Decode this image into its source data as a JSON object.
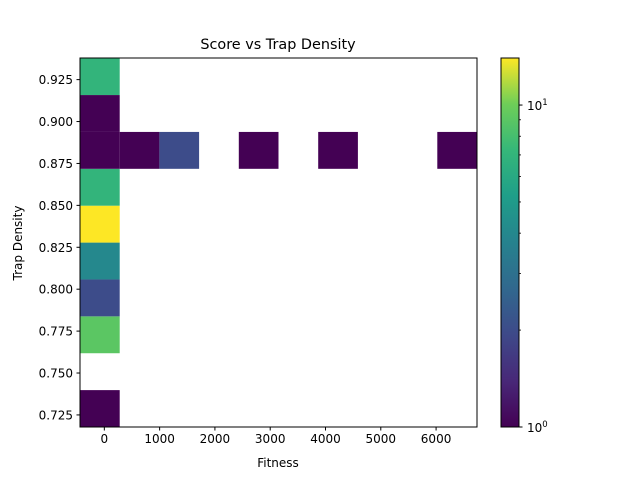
{
  "chart_data": {
    "type": "heatmap",
    "title": "Score vs Trap Density",
    "xlabel": "Fitness",
    "ylabel": "Trap Density",
    "xlim": [
      -440,
      6740
    ],
    "ylim": [
      0.7178,
      0.9379
    ],
    "x_ticks": [
      0,
      1000,
      2000,
      3000,
      4000,
      5000,
      6000
    ],
    "x_tick_labels": [
      "0",
      "1000",
      "2000",
      "3000",
      "4000",
      "5000",
      "6000"
    ],
    "y_ticks": [
      0.725,
      0.75,
      0.775,
      0.8,
      0.825,
      0.85,
      0.875,
      0.9,
      0.925
    ],
    "y_tick_labels": [
      "0.725",
      "0.750",
      "0.775",
      "0.800",
      "0.825",
      "0.850",
      "0.875",
      "0.900",
      "0.925"
    ],
    "color_scale": "log",
    "colormap": "viridis",
    "color_range": [
      1,
      14
    ],
    "colorbar_tick_labels": [
      "10^0",
      "10^1"
    ],
    "grid": false,
    "cells": [
      {
        "x0": -440,
        "x1": 278,
        "y0": 0.7178,
        "y1": 0.7398,
        "count": 1
      },
      {
        "x0": -440,
        "x1": 278,
        "y0": 0.7618,
        "y1": 0.7838,
        "count": 9
      },
      {
        "x0": -440,
        "x1": 278,
        "y0": 0.7838,
        "y1": 0.8058,
        "count": 2
      },
      {
        "x0": -440,
        "x1": 278,
        "y0": 0.8058,
        "y1": 0.8278,
        "count": 4
      },
      {
        "x0": -440,
        "x1": 278,
        "y0": 0.8278,
        "y1": 0.8498,
        "count": 14
      },
      {
        "x0": -440,
        "x1": 278,
        "y0": 0.8498,
        "y1": 0.8718,
        "count": 7
      },
      {
        "x0": -440,
        "x1": 278,
        "y0": 0.8718,
        "y1": 0.8938,
        "count": 1
      },
      {
        "x0": 278,
        "x1": 996,
        "y0": 0.8718,
        "y1": 0.8938,
        "count": 1
      },
      {
        "x0": 996,
        "x1": 1714,
        "y0": 0.8718,
        "y1": 0.8938,
        "count": 2
      },
      {
        "x0": 2432,
        "x1": 3150,
        "y0": 0.8718,
        "y1": 0.8938,
        "count": 1
      },
      {
        "x0": 3868,
        "x1": 4586,
        "y0": 0.8718,
        "y1": 0.8938,
        "count": 1
      },
      {
        "x0": 6022,
        "x1": 6740,
        "y0": 0.8718,
        "y1": 0.8938,
        "count": 1
      },
      {
        "x0": -440,
        "x1": 278,
        "y0": 0.8938,
        "y1": 0.9158,
        "count": 1
      },
      {
        "x0": -440,
        "x1": 278,
        "y0": 0.9158,
        "y1": 0.9379,
        "count": 7
      }
    ]
  }
}
